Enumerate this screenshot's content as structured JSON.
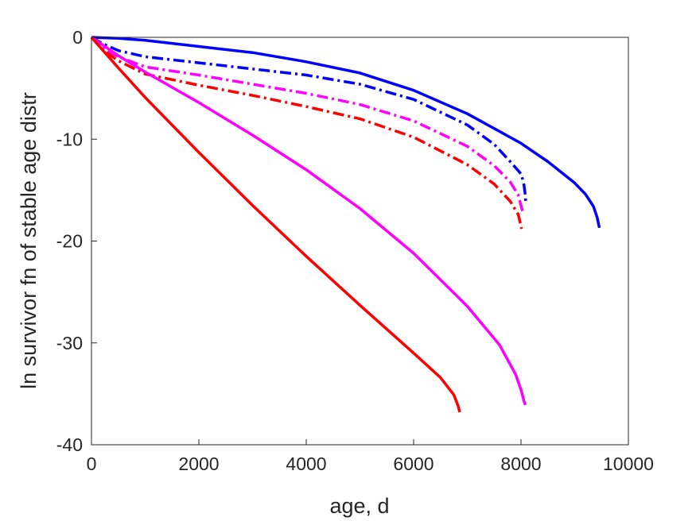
{
  "chart_data": {
    "type": "line",
    "xlabel": "age, d",
    "ylabel": "ln survivor fn of stable age distr",
    "xlim": [
      0,
      10000
    ],
    "ylim": [
      -40,
      0
    ],
    "xticks": [
      0,
      2000,
      4000,
      6000,
      8000,
      10000
    ],
    "xtick_labels": [
      "0",
      "2000",
      "4000",
      "6000",
      "8000",
      "10000"
    ],
    "yticks": [
      0,
      -10,
      -20,
      -30,
      -40
    ],
    "ytick_labels": [
      "0",
      "-10",
      "-20",
      "-30",
      "-40"
    ],
    "grid": false,
    "legend": "none",
    "series": [
      {
        "color": "#0000ff",
        "style": "solid",
        "points": [
          [
            0,
            0
          ],
          [
            500,
            -0.1
          ],
          [
            1000,
            -0.3
          ],
          [
            2000,
            -0.9
          ],
          [
            3000,
            -1.5
          ],
          [
            4000,
            -2.4
          ],
          [
            5000,
            -3.5
          ],
          [
            6000,
            -5.2
          ],
          [
            7000,
            -7.5
          ],
          [
            8000,
            -10.4
          ],
          [
            8500,
            -12.2
          ],
          [
            9000,
            -14.3
          ],
          [
            9200,
            -15.4
          ],
          [
            9350,
            -16.6
          ],
          [
            9420,
            -17.7
          ],
          [
            9460,
            -18.7
          ]
        ]
      },
      {
        "color": "#0000ff",
        "style": "dashdot",
        "points": [
          [
            0,
            0
          ],
          [
            200,
            -0.6
          ],
          [
            500,
            -1.3
          ],
          [
            1000,
            -1.9
          ],
          [
            2000,
            -2.5
          ],
          [
            3000,
            -3.1
          ],
          [
            4000,
            -3.7
          ],
          [
            5000,
            -4.6
          ],
          [
            6000,
            -6.1
          ],
          [
            7000,
            -8.6
          ],
          [
            7500,
            -10.5
          ],
          [
            7800,
            -12.2
          ],
          [
            8000,
            -13.4
          ],
          [
            8050,
            -14.3
          ],
          [
            8080,
            -15.5
          ],
          [
            8090,
            -16.4
          ]
        ]
      },
      {
        "color": "#ff00ff",
        "style": "dashdot",
        "points": [
          [
            0,
            0
          ],
          [
            200,
            -1.0
          ],
          [
            500,
            -1.9
          ],
          [
            1000,
            -2.9
          ],
          [
            2000,
            -3.7
          ],
          [
            3000,
            -4.6
          ],
          [
            4000,
            -5.5
          ],
          [
            5000,
            -6.6
          ],
          [
            6000,
            -8.2
          ],
          [
            7000,
            -10.7
          ],
          [
            7500,
            -12.6
          ],
          [
            7800,
            -14.2
          ],
          [
            7950,
            -15.5
          ],
          [
            8030,
            -17.1
          ]
        ]
      },
      {
        "color": "#ff0000",
        "style": "dashdot",
        "points": [
          [
            0,
            0
          ],
          [
            200,
            -1.2
          ],
          [
            500,
            -2.3
          ],
          [
            1000,
            -3.6
          ],
          [
            2000,
            -4.7
          ],
          [
            3000,
            -5.7
          ],
          [
            4000,
            -6.8
          ],
          [
            5000,
            -8.0
          ],
          [
            6000,
            -9.8
          ],
          [
            7000,
            -12.5
          ],
          [
            7500,
            -14.4
          ],
          [
            7800,
            -16.1
          ],
          [
            7950,
            -17.4
          ],
          [
            8010,
            -18.8
          ]
        ]
      },
      {
        "color": "#ff00ff",
        "style": "solid",
        "points": [
          [
            0,
            0
          ],
          [
            500,
            -1.8
          ],
          [
            1000,
            -3.4
          ],
          [
            2000,
            -6.4
          ],
          [
            3000,
            -9.6
          ],
          [
            4000,
            -13.0
          ],
          [
            5000,
            -16.8
          ],
          [
            6000,
            -21.2
          ],
          [
            7000,
            -26.4
          ],
          [
            7600,
            -30.2
          ],
          [
            7900,
            -33.1
          ],
          [
            8000,
            -34.6
          ],
          [
            8050,
            -35.6
          ],
          [
            8080,
            -36.1
          ]
        ]
      },
      {
        "color": "#ff0000",
        "style": "solid",
        "points": [
          [
            0,
            0
          ],
          [
            500,
            -3.0
          ],
          [
            1000,
            -5.9
          ],
          [
            2000,
            -11.3
          ],
          [
            3000,
            -16.5
          ],
          [
            4000,
            -21.5
          ],
          [
            5000,
            -26.3
          ],
          [
            6000,
            -31.0
          ],
          [
            6500,
            -33.4
          ],
          [
            6750,
            -35.1
          ],
          [
            6830,
            -36.2
          ],
          [
            6860,
            -36.8
          ]
        ]
      }
    ]
  }
}
